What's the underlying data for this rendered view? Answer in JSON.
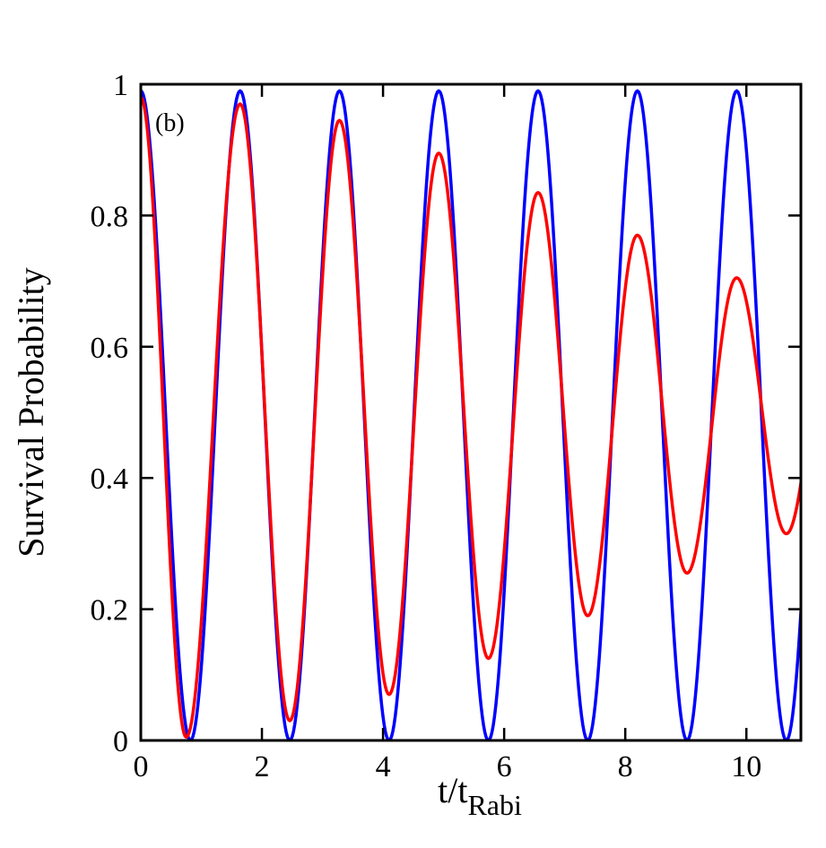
{
  "chart_data": {
    "type": "line",
    "title": "",
    "panel_label": "(b)",
    "xlabel_main": "t/t",
    "xlabel_sub": "Rabi",
    "ylabel": "Survival Probability",
    "xlim": [
      0,
      10.9
    ],
    "ylim": [
      0,
      1
    ],
    "xticks": [
      0,
      2,
      4,
      6,
      8,
      10
    ],
    "yticks": [
      0,
      0.2,
      0.4,
      0.6,
      0.8,
      1
    ],
    "xtick_labels": [
      "0",
      "2",
      "4",
      "6",
      "8",
      "10"
    ],
    "ytick_labels": [
      "0",
      "0.2",
      "0.4",
      "0.6",
      "0.8",
      "1"
    ],
    "grid": false,
    "series": [
      {
        "color": "#0000ff",
        "period": 1.64,
        "peaks": [
          [
            0,
            0.99
          ],
          [
            1.64,
            0.99
          ],
          [
            3.28,
            0.99
          ],
          [
            4.92,
            0.99
          ],
          [
            6.56,
            0.99
          ],
          [
            8.2,
            0.99
          ],
          [
            9.84,
            0.99
          ]
        ],
        "troughs": [
          [
            0.82,
            0.0
          ],
          [
            2.46,
            0.0
          ],
          [
            4.1,
            0.0
          ],
          [
            5.74,
            0.0
          ],
          [
            7.38,
            0.0
          ],
          [
            9.02,
            0.0
          ],
          [
            10.66,
            0.0
          ]
        ],
        "end_value": 0.2
      },
      {
        "color": "#ff0000",
        "period": 1.64,
        "peaks": [
          [
            0,
            0.98
          ],
          [
            1.64,
            0.97
          ],
          [
            3.28,
            0.945
          ],
          [
            4.92,
            0.895
          ],
          [
            6.56,
            0.835
          ],
          [
            8.2,
            0.77
          ],
          [
            9.84,
            0.705
          ]
        ],
        "troughs": [
          [
            0.75,
            0.005
          ],
          [
            2.46,
            0.03
          ],
          [
            4.1,
            0.07
          ],
          [
            5.74,
            0.125
          ],
          [
            7.38,
            0.19
          ],
          [
            9.02,
            0.255
          ],
          [
            10.66,
            0.315
          ]
        ],
        "end_value": 0.39
      }
    ]
  }
}
